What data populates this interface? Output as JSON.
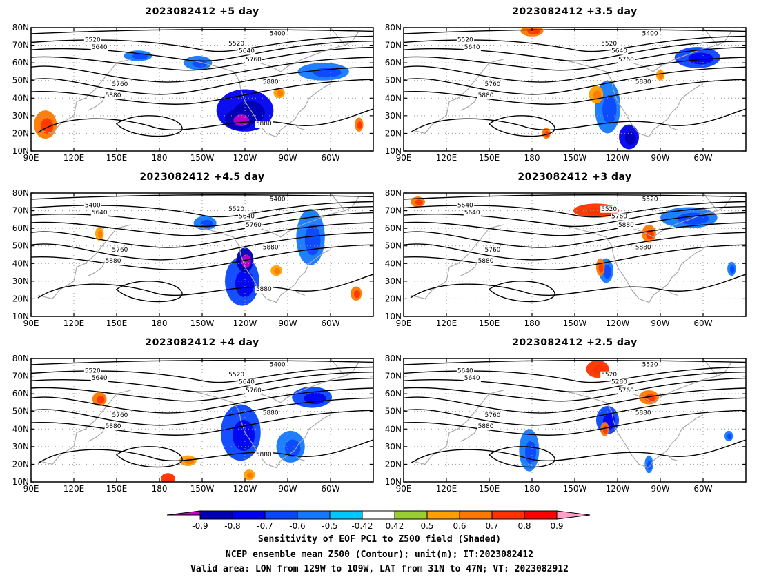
{
  "panels": [
    {
      "title": "2023082412 +5 day",
      "contour_labels": [
        "5400",
        "5520",
        "5520",
        "5640",
        "5640",
        "5760",
        "5760",
        "5880",
        "5880",
        "5880"
      ],
      "shaded_regions": [
        {
          "lon": 240,
          "lat": 33,
          "rx": 20,
          "ry": 12,
          "value": -0.8
        },
        {
          "lon": 236,
          "lat": 28,
          "rx": 10,
          "ry": 6,
          "value": -0.9
        },
        {
          "lon": 207,
          "lat": 60,
          "rx": 10,
          "ry": 4,
          "value": -0.6
        },
        {
          "lon": 165,
          "lat": 64,
          "rx": 10,
          "ry": 3,
          "value": -0.6
        },
        {
          "lon": 295,
          "lat": 55,
          "rx": 18,
          "ry": 5,
          "value": -0.6
        },
        {
          "lon": 100,
          "lat": 25,
          "rx": 8,
          "ry": 8,
          "value": 0.6
        },
        {
          "lon": 264,
          "lat": 43,
          "rx": 4,
          "ry": 3,
          "value": 0.5
        },
        {
          "lon": 320,
          "lat": 25,
          "rx": 3,
          "ry": 4,
          "value": 0.6
        }
      ]
    },
    {
      "title": "2023082412 +3.5 day",
      "contour_labels": [
        "5400",
        "5520",
        "5520",
        "5640",
        "5640",
        "5760",
        "5760",
        "5880",
        "5880"
      ],
      "shaded_regions": [
        {
          "lon": 296,
          "lat": 63,
          "rx": 16,
          "ry": 6,
          "value": -0.7
        },
        {
          "lon": 233,
          "lat": 35,
          "rx": 9,
          "ry": 15,
          "value": -0.6
        },
        {
          "lon": 248,
          "lat": 18,
          "rx": 7,
          "ry": 7,
          "value": -0.8
        },
        {
          "lon": 180,
          "lat": 78,
          "rx": 8,
          "ry": 3,
          "value": 0.6
        },
        {
          "lon": 225,
          "lat": 42,
          "rx": 5,
          "ry": 5,
          "value": 0.5
        },
        {
          "lon": 270,
          "lat": 53,
          "rx": 3,
          "ry": 3,
          "value": 0.5
        },
        {
          "lon": 190,
          "lat": 20,
          "rx": 3,
          "ry": 3,
          "value": 0.6
        }
      ]
    },
    {
      "title": "2023082412 +4.5 day",
      "contour_labels": [
        "5400",
        "5400",
        "5520",
        "5640",
        "5640",
        "5760",
        "5760",
        "5880",
        "5880",
        "5880"
      ],
      "shaded_regions": [
        {
          "lon": 238,
          "lat": 30,
          "rx": 12,
          "ry": 14,
          "value": -0.7
        },
        {
          "lon": 240,
          "lat": 42,
          "rx": 6,
          "ry": 7,
          "value": -0.9
        },
        {
          "lon": 286,
          "lat": 55,
          "rx": 10,
          "ry": 16,
          "value": -0.6
        },
        {
          "lon": 212,
          "lat": 63,
          "rx": 8,
          "ry": 4,
          "value": -0.6
        },
        {
          "lon": 138,
          "lat": 57,
          "rx": 3,
          "ry": 4,
          "value": 0.5
        },
        {
          "lon": 318,
          "lat": 23,
          "rx": 4,
          "ry": 4,
          "value": 0.6
        },
        {
          "lon": 262,
          "lat": 36,
          "rx": 4,
          "ry": 3,
          "value": 0.5
        }
      ]
    },
    {
      "title": "2023082412 +3 day",
      "contour_labels": [
        "5520",
        "5640",
        "5520",
        "5640",
        "5760",
        "5760",
        "5880",
        "5880",
        "5880"
      ],
      "shaded_regions": [
        {
          "lon": 290,
          "lat": 66,
          "rx": 20,
          "ry": 6,
          "value": -0.6
        },
        {
          "lon": 232,
          "lat": 36,
          "rx": 5,
          "ry": 7,
          "value": -0.6
        },
        {
          "lon": 225,
          "lat": 70,
          "rx": 16,
          "ry": 4,
          "value": 0.7
        },
        {
          "lon": 262,
          "lat": 57,
          "rx": 5,
          "ry": 5,
          "value": 0.6
        },
        {
          "lon": 228,
          "lat": 38,
          "rx": 3,
          "ry": 5,
          "value": 0.6
        },
        {
          "lon": 100,
          "lat": 75,
          "rx": 5,
          "ry": 3,
          "value": 0.6
        },
        {
          "lon": 320,
          "lat": 37,
          "rx": 3,
          "ry": 4,
          "value": -0.6
        }
      ]
    },
    {
      "title": "2023082412 +4 day",
      "contour_labels": [
        "5400",
        "5520",
        "5520",
        "5640",
        "5640",
        "5760",
        "5760",
        "5880",
        "5880",
        "5880"
      ],
      "shaded_regions": [
        {
          "lon": 237,
          "lat": 38,
          "rx": 14,
          "ry": 16,
          "value": -0.7
        },
        {
          "lon": 287,
          "lat": 58,
          "rx": 14,
          "ry": 6,
          "value": -0.7
        },
        {
          "lon": 272,
          "lat": 30,
          "rx": 10,
          "ry": 9,
          "value": -0.6
        },
        {
          "lon": 138,
          "lat": 57,
          "rx": 5,
          "ry": 4,
          "value": 0.6
        },
        {
          "lon": 186,
          "lat": 12,
          "rx": 5,
          "ry": 3,
          "value": 0.7
        },
        {
          "lon": 200,
          "lat": 22,
          "rx": 6,
          "ry": 3,
          "value": 0.5
        },
        {
          "lon": 243,
          "lat": 14,
          "rx": 4,
          "ry": 3,
          "value": 0.5
        }
      ]
    },
    {
      "title": "2023082412 +2.5 day",
      "contour_labels": [
        "5520",
        "5640",
        "5520",
        "5640",
        "5280",
        "5760",
        "5760",
        "5880",
        "5880"
      ],
      "shaded_regions": [
        {
          "lon": 233,
          "lat": 45,
          "rx": 8,
          "ry": 8,
          "value": -0.7
        },
        {
          "lon": 178,
          "lat": 28,
          "rx": 7,
          "ry": 12,
          "value": -0.6
        },
        {
          "lon": 226,
          "lat": 74,
          "rx": 8,
          "ry": 5,
          "value": 0.7
        },
        {
          "lon": 262,
          "lat": 58,
          "rx": 7,
          "ry": 4,
          "value": 0.6
        },
        {
          "lon": 231,
          "lat": 40,
          "rx": 3,
          "ry": 4,
          "value": 0.6
        },
        {
          "lon": 318,
          "lat": 36,
          "rx": 3,
          "ry": 3,
          "value": -0.6
        },
        {
          "lon": 262,
          "lat": 20,
          "rx": 3,
          "ry": 5,
          "value": -0.6
        }
      ]
    }
  ],
  "axes": {
    "lat_labels": [
      "10N",
      "20N",
      "30N",
      "40N",
      "50N",
      "60N",
      "70N",
      "80N"
    ],
    "lon_labels": [
      "90E",
      "120E",
      "150E",
      "180",
      "150W",
      "120W",
      "90W",
      "60W"
    ],
    "lat_range": [
      10,
      80
    ],
    "lon_range": [
      90,
      330
    ]
  },
  "colorbar": {
    "labels": [
      "-0.9",
      "-0.8",
      "-0.7",
      "-0.6",
      "-0.5",
      "-0.42",
      "0.42",
      "0.5",
      "0.6",
      "0.7",
      "0.8",
      "0.9"
    ],
    "colors": [
      "#c800c8",
      "#0000b4",
      "#0000f0",
      "#0a46ff",
      "#1478ff",
      "#00c8ff",
      "#ffffff",
      "#9acd32",
      "#ffa000",
      "#ff7800",
      "#ff3200",
      "#ff0000",
      "#ffa0c8"
    ]
  },
  "footer": {
    "line1": "Sensitivity of EOF PC1 to Z500 field (Shaded)",
    "line2": "NCEP ensemble mean Z500 (Contour); unit(m); IT:2023082412",
    "line3": "Valid area: LON from 129W to 109W, LAT from 31N to 47N; VT: 2023082912"
  }
}
